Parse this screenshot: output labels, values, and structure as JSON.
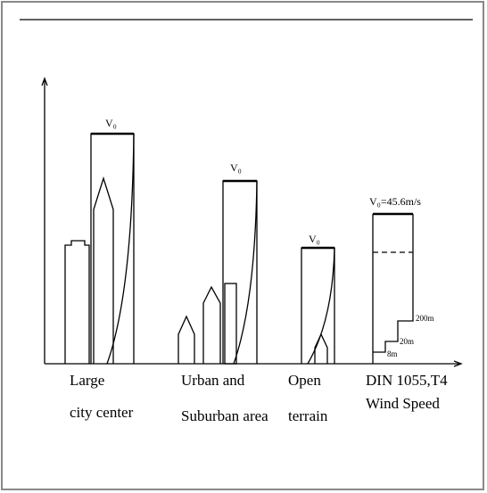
{
  "groups": [
    {
      "label_lines": [
        "Large",
        "city center"
      ],
      "wind_label": "V₀"
    },
    {
      "label_lines": [
        "Urban and",
        "Suburban area"
      ],
      "wind_label": "V₀"
    },
    {
      "label_lines": [
        "Open",
        "terrain"
      ],
      "wind_label": "V₀"
    },
    {
      "label_lines": [
        "DIN 1055,T4",
        "Wind Speed"
      ],
      "wind_label": "V₀=45.6m/s"
    }
  ],
  "heights": [
    "200m",
    "20m",
    "8m"
  ]
}
